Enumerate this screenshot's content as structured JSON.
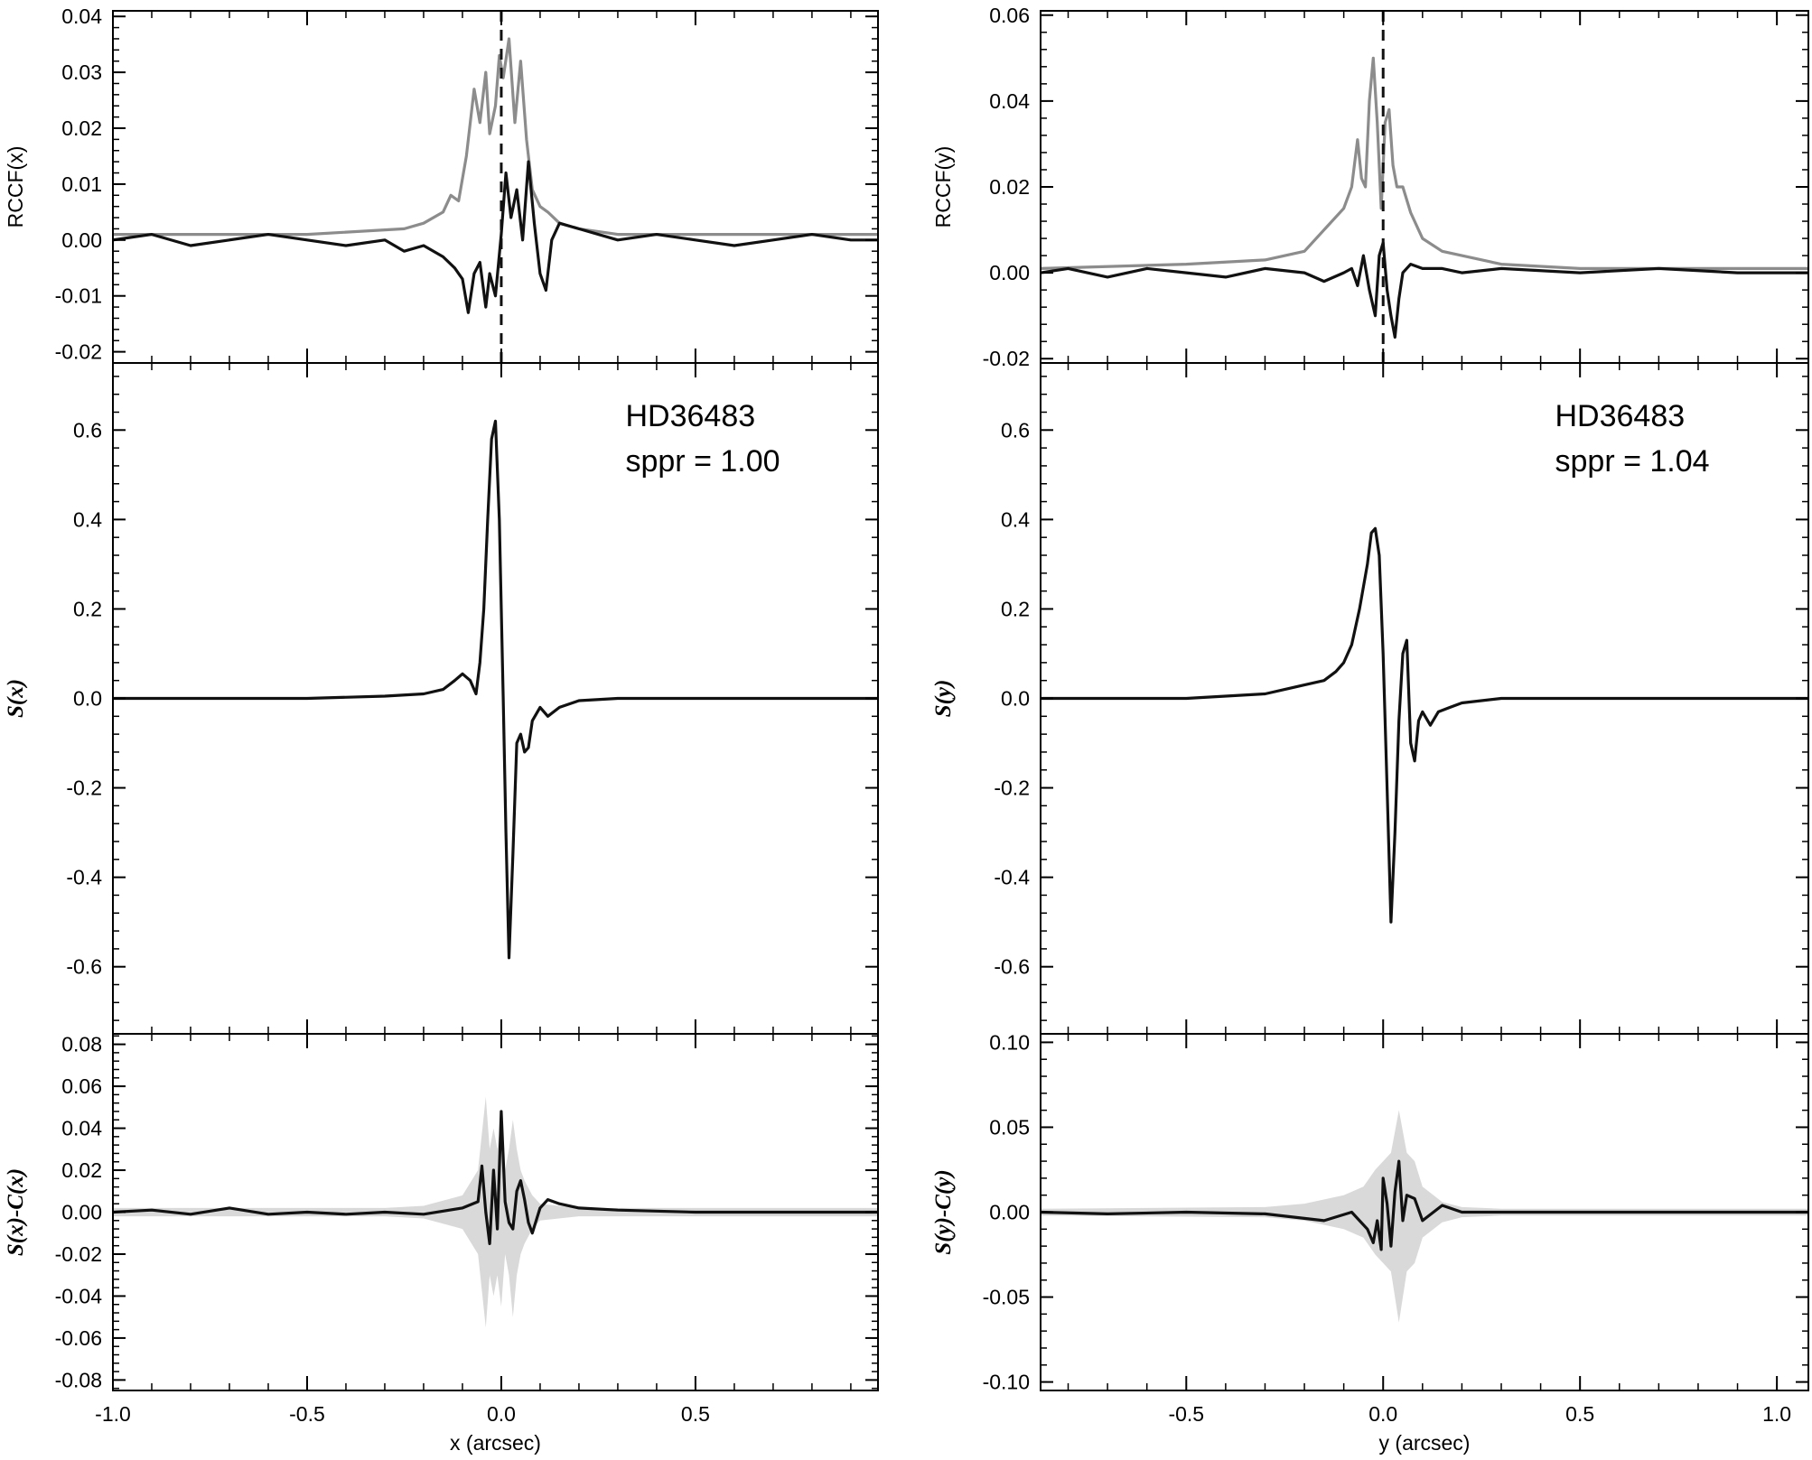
{
  "chart_data": [
    {
      "panel": "left-top",
      "type": "line",
      "ylabel": "RCCF(x)",
      "xlim": [
        -1.0,
        0.97
      ],
      "ylim": [
        -0.022,
        0.041
      ],
      "yticks": [
        "0.04",
        "0.03",
        "0.02",
        "0.01",
        "0.00",
        "-0.01",
        "-0.02"
      ],
      "ytick_values": [
        0.04,
        0.03,
        0.02,
        0.01,
        0.0,
        -0.01,
        -0.02
      ],
      "vline_x": 0.0,
      "series": [
        {
          "color": "#8c8c8c",
          "x": [
            -1.0,
            -0.5,
            -0.25,
            -0.2,
            -0.15,
            -0.13,
            -0.11,
            -0.09,
            -0.07,
            -0.055,
            -0.04,
            -0.03,
            -0.015,
            -0.005,
            0.005,
            0.02,
            0.035,
            0.05,
            0.065,
            0.08,
            0.1,
            0.12,
            0.15,
            0.2,
            0.3,
            0.5,
            0.97
          ],
          "y": [
            0.001,
            0.001,
            0.002,
            0.003,
            0.005,
            0.008,
            0.007,
            0.015,
            0.027,
            0.021,
            0.03,
            0.019,
            0.024,
            0.033,
            0.029,
            0.036,
            0.021,
            0.032,
            0.018,
            0.009,
            0.006,
            0.005,
            0.003,
            0.002,
            0.001,
            0.001,
            0.001
          ]
        },
        {
          "color": "#111111",
          "x": [
            -1.0,
            -0.9,
            -0.8,
            -0.7,
            -0.6,
            -0.5,
            -0.4,
            -0.3,
            -0.25,
            -0.2,
            -0.15,
            -0.12,
            -0.1,
            -0.085,
            -0.07,
            -0.055,
            -0.04,
            -0.03,
            -0.015,
            0.0,
            0.012,
            0.025,
            0.04,
            0.055,
            0.07,
            0.085,
            0.1,
            0.115,
            0.13,
            0.15,
            0.2,
            0.3,
            0.4,
            0.5,
            0.6,
            0.7,
            0.8,
            0.9,
            0.97
          ],
          "y": [
            0.0,
            0.001,
            -0.001,
            0.0,
            0.001,
            0.0,
            -0.001,
            0.0,
            -0.002,
            -0.001,
            -0.003,
            -0.005,
            -0.007,
            -0.013,
            -0.006,
            -0.004,
            -0.012,
            -0.006,
            -0.01,
            0.001,
            0.012,
            0.004,
            0.009,
            0.0,
            0.014,
            0.003,
            -0.006,
            -0.009,
            0.0,
            0.003,
            0.002,
            0.0,
            0.001,
            0.0,
            -0.001,
            0.0,
            0.001,
            0.0,
            0.0
          ]
        }
      ]
    },
    {
      "panel": "left-middle",
      "type": "line",
      "ylabel": "S(x)",
      "xlim": [
        -1.0,
        0.97
      ],
      "ylim": [
        -0.75,
        0.75
      ],
      "yticks": [
        "0.6",
        "0.4",
        "0.2",
        "0.0",
        "-0.2",
        "-0.4",
        "-0.6"
      ],
      "ytick_values": [
        0.6,
        0.4,
        0.2,
        0.0,
        -0.2,
        -0.4,
        -0.6
      ],
      "annotations": [
        "HD36483",
        "sppr = 1.00"
      ],
      "series": [
        {
          "color": "#111111",
          "x": [
            -1.0,
            -0.5,
            -0.3,
            -0.2,
            -0.15,
            -0.12,
            -0.1,
            -0.08,
            -0.065,
            -0.055,
            -0.045,
            -0.035,
            -0.025,
            -0.015,
            -0.005,
            0.005,
            0.012,
            0.02,
            0.03,
            0.04,
            0.05,
            0.06,
            0.07,
            0.08,
            0.1,
            0.12,
            0.15,
            0.2,
            0.3,
            0.5,
            0.97
          ],
          "y": [
            0.0,
            0.0,
            0.005,
            0.01,
            0.02,
            0.04,
            0.055,
            0.04,
            0.01,
            0.08,
            0.2,
            0.4,
            0.58,
            0.62,
            0.4,
            0.0,
            -0.3,
            -0.58,
            -0.35,
            -0.1,
            -0.08,
            -0.12,
            -0.11,
            -0.05,
            -0.02,
            -0.04,
            -0.02,
            -0.005,
            0.0,
            0.0,
            0.0
          ]
        }
      ]
    },
    {
      "panel": "left-bottom",
      "type": "line",
      "ylabel": "S(x)-C(x)",
      "xlabel": "x (arcsec)",
      "xlim": [
        -1.0,
        0.97
      ],
      "ylim": [
        -0.085,
        0.085
      ],
      "yticks": [
        "0.08",
        "0.06",
        "0.04",
        "0.02",
        "0.00",
        "-0.02",
        "-0.04",
        "-0.06",
        "-0.08"
      ],
      "ytick_values": [
        0.08,
        0.06,
        0.04,
        0.02,
        0.0,
        -0.02,
        -0.04,
        -0.06,
        -0.08
      ],
      "xticks": [
        "-1.0",
        "-0.5",
        "0.0",
        "0.5"
      ],
      "xtick_values": [
        -1.0,
        -0.5,
        0.0,
        0.5
      ],
      "band": {
        "color": "#d9d9d9",
        "x": [
          -1.0,
          -0.3,
          -0.2,
          -0.1,
          -0.06,
          -0.04,
          -0.03,
          -0.02,
          -0.01,
          0.0,
          0.01,
          0.02,
          0.03,
          0.04,
          0.05,
          0.06,
          0.08,
          0.1,
          0.2,
          0.3,
          0.97
        ],
        "upper": [
          0.002,
          0.002,
          0.003,
          0.008,
          0.02,
          0.055,
          0.03,
          0.04,
          0.03,
          0.045,
          0.02,
          0.03,
          0.044,
          0.03,
          0.02,
          0.015,
          0.008,
          0.004,
          0.002,
          0.002,
          0.002
        ],
        "lower": [
          -0.002,
          -0.002,
          -0.003,
          -0.008,
          -0.02,
          -0.055,
          -0.03,
          -0.04,
          -0.03,
          -0.045,
          -0.02,
          -0.03,
          -0.05,
          -0.03,
          -0.02,
          -0.015,
          -0.008,
          -0.004,
          -0.002,
          -0.002,
          -0.002
        ]
      },
      "series": [
        {
          "color": "#111111",
          "x": [
            -1.0,
            -0.9,
            -0.8,
            -0.7,
            -0.6,
            -0.5,
            -0.4,
            -0.3,
            -0.2,
            -0.1,
            -0.06,
            -0.05,
            -0.04,
            -0.03,
            -0.02,
            -0.01,
            0.0,
            0.01,
            0.02,
            0.03,
            0.04,
            0.05,
            0.06,
            0.07,
            0.08,
            0.1,
            0.12,
            0.15,
            0.2,
            0.3,
            0.5,
            0.7,
            0.97
          ],
          "y": [
            0.0,
            0.001,
            -0.001,
            0.002,
            -0.001,
            0.0,
            -0.001,
            0.0,
            -0.001,
            0.002,
            0.005,
            0.022,
            0.0,
            -0.015,
            0.02,
            -0.008,
            0.048,
            0.005,
            -0.005,
            -0.008,
            0.01,
            0.015,
            0.006,
            -0.005,
            -0.01,
            0.002,
            0.006,
            0.004,
            0.002,
            0.001,
            0.0,
            0.0,
            0.0
          ]
        }
      ]
    },
    {
      "panel": "right-top",
      "type": "line",
      "ylabel": "RCCF(y)",
      "xlim": [
        -0.87,
        1.08
      ],
      "ylim": [
        -0.021,
        0.061
      ],
      "yticks": [
        "0.06",
        "0.04",
        "0.02",
        "0.00",
        "-0.02"
      ],
      "ytick_values": [
        0.06,
        0.04,
        0.02,
        0.0,
        -0.02
      ],
      "vline_x": 0.0,
      "series": [
        {
          "color": "#8c8c8c",
          "x": [
            -0.87,
            -0.5,
            -0.3,
            -0.2,
            -0.15,
            -0.1,
            -0.08,
            -0.065,
            -0.055,
            -0.045,
            -0.035,
            -0.025,
            -0.015,
            -0.005,
            0.005,
            0.015,
            0.025,
            0.035,
            0.05,
            0.07,
            0.1,
            0.15,
            0.2,
            0.3,
            0.5,
            0.8,
            1.08
          ],
          "y": [
            0.001,
            0.002,
            0.003,
            0.005,
            0.01,
            0.015,
            0.02,
            0.031,
            0.022,
            0.02,
            0.04,
            0.05,
            0.035,
            0.015,
            0.035,
            0.038,
            0.025,
            0.02,
            0.02,
            0.014,
            0.008,
            0.005,
            0.004,
            0.002,
            0.001,
            0.001,
            0.001
          ]
        },
        {
          "color": "#111111",
          "x": [
            -0.87,
            -0.8,
            -0.7,
            -0.6,
            -0.5,
            -0.4,
            -0.3,
            -0.2,
            -0.15,
            -0.1,
            -0.08,
            -0.065,
            -0.05,
            -0.035,
            -0.02,
            -0.01,
            0.0,
            0.01,
            0.02,
            0.03,
            0.04,
            0.05,
            0.07,
            0.1,
            0.15,
            0.2,
            0.3,
            0.5,
            0.7,
            0.9,
            1.08
          ],
          "y": [
            0.0,
            0.001,
            -0.001,
            0.001,
            0.0,
            -0.001,
            0.001,
            0.0,
            -0.002,
            0.0,
            0.001,
            -0.003,
            0.004,
            -0.004,
            -0.01,
            0.004,
            0.007,
            -0.004,
            -0.01,
            -0.015,
            -0.006,
            0.0,
            0.002,
            0.001,
            0.001,
            0.0,
            0.001,
            0.0,
            0.001,
            0.0,
            0.0
          ]
        }
      ]
    },
    {
      "panel": "right-middle",
      "type": "line",
      "ylabel": "S(y)",
      "xlim": [
        -0.87,
        1.08
      ],
      "ylim": [
        -0.75,
        0.75
      ],
      "yticks": [
        "0.6",
        "0.4",
        "0.2",
        "0.0",
        "-0.2",
        "-0.4",
        "-0.6"
      ],
      "ytick_values": [
        0.6,
        0.4,
        0.2,
        0.0,
        -0.2,
        -0.4,
        -0.6
      ],
      "annotations": [
        "HD36483",
        "sppr = 1.04"
      ],
      "series": [
        {
          "color": "#111111",
          "x": [
            -0.87,
            -0.5,
            -0.3,
            -0.2,
            -0.15,
            -0.12,
            -0.1,
            -0.08,
            -0.06,
            -0.04,
            -0.03,
            -0.02,
            -0.01,
            0.0,
            0.01,
            0.02,
            0.03,
            0.04,
            0.05,
            0.06,
            0.07,
            0.08,
            0.09,
            0.1,
            0.12,
            0.14,
            0.17,
            0.2,
            0.3,
            0.5,
            1.08
          ],
          "y": [
            0.0,
            0.0,
            0.01,
            0.03,
            0.04,
            0.06,
            0.08,
            0.12,
            0.2,
            0.3,
            0.37,
            0.38,
            0.32,
            0.1,
            -0.2,
            -0.5,
            -0.3,
            -0.05,
            0.1,
            0.13,
            -0.1,
            -0.14,
            -0.05,
            -0.03,
            -0.06,
            -0.03,
            -0.02,
            -0.01,
            0.0,
            0.0,
            0.0
          ]
        }
      ]
    },
    {
      "panel": "right-bottom",
      "type": "line",
      "ylabel": "S(y)-C(y)",
      "xlabel": "y (arcsec)",
      "xlim": [
        -0.87,
        1.08
      ],
      "ylim": [
        -0.105,
        0.105
      ],
      "yticks": [
        "0.10",
        "0.05",
        "0.00",
        "-0.05",
        "-0.10"
      ],
      "ytick_values": [
        0.1,
        0.05,
        0.0,
        -0.05,
        -0.1
      ],
      "xticks": [
        "-0.5",
        "0.0",
        "0.5",
        "1.0"
      ],
      "xtick_values": [
        -0.5,
        0.0,
        0.5,
        1.0
      ],
      "band": {
        "color": "#d9d9d9",
        "x": [
          -0.87,
          -0.3,
          -0.2,
          -0.1,
          -0.05,
          -0.02,
          0.0,
          0.02,
          0.04,
          0.06,
          0.08,
          0.1,
          0.15,
          0.2,
          0.3,
          1.08
        ],
        "upper": [
          0.002,
          0.003,
          0.005,
          0.01,
          0.015,
          0.025,
          0.03,
          0.035,
          0.06,
          0.035,
          0.03,
          0.015,
          0.006,
          0.003,
          0.002,
          0.002
        ],
        "lower": [
          -0.002,
          -0.003,
          -0.005,
          -0.01,
          -0.015,
          -0.025,
          -0.03,
          -0.035,
          -0.065,
          -0.035,
          -0.03,
          -0.015,
          -0.006,
          -0.003,
          -0.002,
          -0.002
        ]
      },
      "series": [
        {
          "color": "#111111",
          "x": [
            -0.87,
            -0.7,
            -0.5,
            -0.3,
            -0.15,
            -0.08,
            -0.04,
            -0.025,
            -0.015,
            -0.005,
            0.0,
            0.01,
            0.02,
            0.03,
            0.04,
            0.05,
            0.06,
            0.08,
            0.1,
            0.15,
            0.2,
            0.3,
            0.5,
            0.7,
            0.9,
            1.08
          ],
          "y": [
            0.0,
            -0.001,
            0.0,
            -0.001,
            -0.005,
            0.0,
            -0.01,
            -0.018,
            -0.005,
            -0.022,
            0.02,
            0.005,
            -0.02,
            0.012,
            0.03,
            -0.005,
            0.01,
            0.008,
            -0.005,
            0.004,
            0.0,
            0.0,
            0.0,
            0.0,
            0.0,
            0.0
          ]
        }
      ]
    }
  ]
}
